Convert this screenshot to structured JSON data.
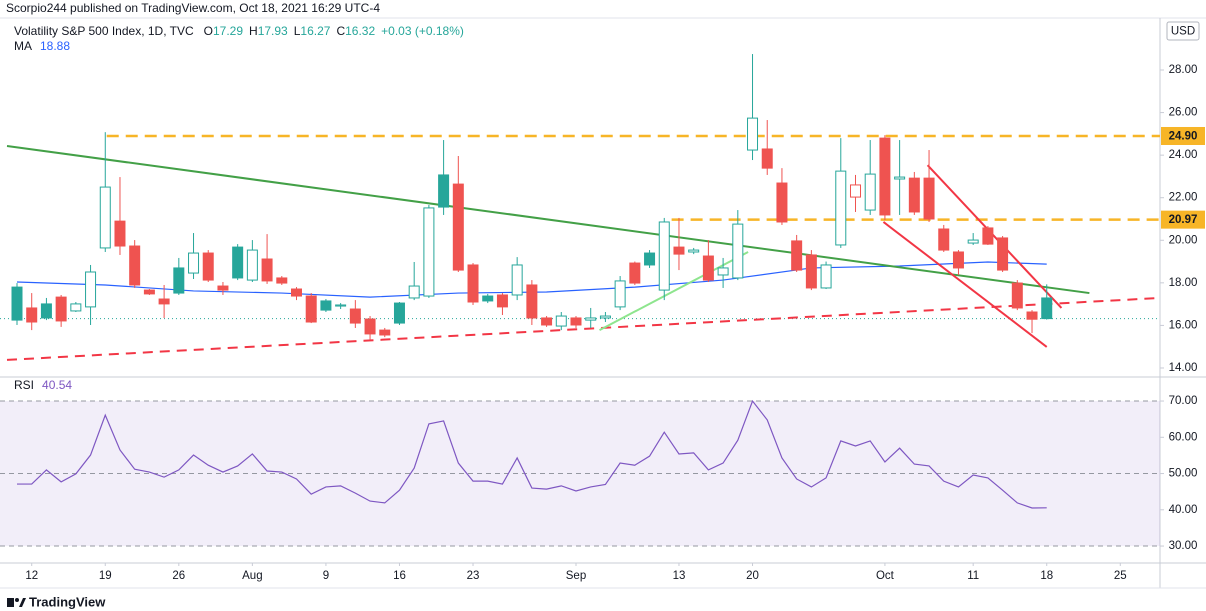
{
  "header": {
    "publisher": "Scorpio244 published on TradingView.com, Oct 18, 2021 16:29 UTC-4"
  },
  "footer": {
    "brand": "TradingView"
  },
  "chart_data": [
    {
      "type": "candlestick",
      "name": "Volatility S&P 500 Index, 1D, TVC",
      "ohlc_labels": [
        "O",
        "H",
        "L",
        "C"
      ],
      "change": "+0.03 (+0.18%)",
      "currency": "USD",
      "up_color": "#26a69a",
      "down_color": "#ef5350",
      "open": [
        17.8,
        16.82,
        17.01,
        17.33,
        16.68,
        16.87,
        19.64,
        20.9,
        19.73,
        17.66,
        17.24,
        18.7,
        18.46,
        19.4,
        17.85,
        19.68,
        18.13,
        19.12,
        18.23,
        17.71,
        17.38,
        17.15,
        16.91,
        16.77,
        16.3,
        15.78,
        17.05,
        17.29,
        17.38,
        23.07,
        22.64,
        18.84,
        17.38,
        17.43,
        17.43,
        17.9,
        16.35,
        15.97,
        16.35,
        16.25,
        16.35,
        16.87,
        18.93,
        19.4,
        17.66,
        19.68,
        19.45,
        19.26,
        18.37,
        18.23,
        24.24,
        24.29,
        22.69,
        19.97,
        19.31,
        17.76,
        19.78,
        22.03,
        21.42,
        24.8,
        22.88,
        22.92,
        22.92,
        20.53,
        19.45,
        19.87,
        20.58,
        20.11,
        17.99,
        16.63,
        17.29
      ],
      "high": [
        17.99,
        17.52,
        17.29,
        17.43,
        17.1,
        18.84,
        25.08,
        22.97,
        20.01,
        17.71,
        17.9,
        19.17,
        20.34,
        19.54,
        18.04,
        19.82,
        20.01,
        20.29,
        18.32,
        17.8,
        17.52,
        17.24,
        17.05,
        17.19,
        16.44,
        15.88,
        17.1,
        18.98,
        21.66,
        24.71,
        23.96,
        18.93,
        17.48,
        17.52,
        19.21,
        18.13,
        16.44,
        16.63,
        16.44,
        16.82,
        16.63,
        18.32,
        19.0,
        19.54,
        21.05,
        21.05,
        19.64,
        20.01,
        19.17,
        21.42,
        28.75,
        25.65,
        23.39,
        20.25,
        19.54,
        19.0,
        24.8,
        23.07,
        24.71,
        24.94,
        24.71,
        23.21,
        24.24,
        20.72,
        19.54,
        20.34,
        20.67,
        20.2,
        18.13,
        16.72,
        17.93
      ],
      "low": [
        16.02,
        15.78,
        16.25,
        15.93,
        16.63,
        16.02,
        19.45,
        19.31,
        17.76,
        17.43,
        16.35,
        17.43,
        18.18,
        18.04,
        17.43,
        18.13,
        18.04,
        17.95,
        17.9,
        17.19,
        16.11,
        16.63,
        16.77,
        15.88,
        15.32,
        15.45,
        16.02,
        17.19,
        17.29,
        21.19,
        18.51,
        16.96,
        17.05,
        16.49,
        17.19,
        16.02,
        15.93,
        15.78,
        15.88,
        15.88,
        16.16,
        16.72,
        17.9,
        18.7,
        17.19,
        18.6,
        19.35,
        18.04,
        17.76,
        18.13,
        23.77,
        23.07,
        20.72,
        18.51,
        17.66,
        17.71,
        19.64,
        21.33,
        21.19,
        20.95,
        21.19,
        21.19,
        20.86,
        19.45,
        18.37,
        19.78,
        19.78,
        18.51,
        16.72,
        15.64,
        16.27
      ],
      "close": [
        16.25,
        16.16,
        16.35,
        16.21,
        17.01,
        18.51,
        22.5,
        19.73,
        17.9,
        17.48,
        17.01,
        17.52,
        19.4,
        18.13,
        17.66,
        18.23,
        19.54,
        18.09,
        17.99,
        17.38,
        16.16,
        16.72,
        16.96,
        16.11,
        15.6,
        15.55,
        16.11,
        17.85,
        21.52,
        21.56,
        18.6,
        17.1,
        17.15,
        16.87,
        18.84,
        16.35,
        16.02,
        16.44,
        16.02,
        16.35,
        16.44,
        18.09,
        17.99,
        18.84,
        20.86,
        19.35,
        19.54,
        18.13,
        18.7,
        20.76,
        25.74,
        23.39,
        20.86,
        18.6,
        17.76,
        18.84,
        23.25,
        22.6,
        23.11,
        21.19,
        22.97,
        21.33,
        21.0,
        19.54,
        18.7,
        20.01,
        19.82,
        18.6,
        16.82,
        16.29,
        16.32
      ],
      "ma": {
        "name": "MA",
        "color": "#2962ff",
        "x": [
          0,
          6,
          12,
          18,
          24,
          30,
          36,
          42,
          48,
          54,
          60,
          66,
          70
        ],
        "values": [
          18.04,
          17.9,
          17.62,
          17.52,
          17.33,
          17.52,
          17.57,
          17.8,
          18.13,
          18.7,
          18.79,
          18.98,
          18.88
        ]
      },
      "ylim": [
        13.67,
        30.35
      ],
      "yticks": [
        {
          "value": 28,
          "label": "28.00"
        },
        {
          "value": 26,
          "label": "26.00"
        },
        {
          "value": 24,
          "label": "24.00"
        },
        {
          "value": 22,
          "label": "22.00"
        },
        {
          "value": 20,
          "label": "20.00"
        },
        {
          "value": 18,
          "label": "18.00"
        },
        {
          "value": 16,
          "label": "16.00"
        },
        {
          "value": 14,
          "label": "14.00"
        }
      ],
      "levels": [
        {
          "value": 24.9,
          "label": "24.90",
          "from": 6.1,
          "color": "#f7b527"
        },
        {
          "value": 20.97,
          "label": "20.97",
          "from": 44.5,
          "color": "#f7b527"
        }
      ],
      "trendlines": [
        {
          "color": "#43a047",
          "dashed": false,
          "x": [
            -0.68,
            72.9
          ],
          "values": [
            24.43,
            17.52
          ]
        },
        {
          "color": "#f23645",
          "dashed": true,
          "x": [
            -0.68,
            77.7
          ],
          "values": [
            14.38,
            17.29
          ]
        },
        {
          "color": "#f23645",
          "dashed": false,
          "x": [
            61.9,
            71.0
          ],
          "values": [
            23.53,
            16.82
          ]
        },
        {
          "color": "#f23645",
          "dashed": false,
          "x": [
            58.9,
            70.0
          ],
          "values": [
            20.86,
            14.99
          ]
        },
        {
          "color": "#8ee58e",
          "dashed": false,
          "x": [
            39.6,
            49.7
          ],
          "values": [
            15.78,
            19.45
          ]
        }
      ],
      "grid": false
    },
    {
      "type": "line",
      "name": "RSI",
      "color": "#7e57c2",
      "values": [
        47.1,
        47.1,
        51.0,
        47.7,
        49.9,
        55.1,
        66.1,
        56.5,
        51.2,
        50.4,
        49.0,
        51.0,
        55.1,
        52.3,
        50.4,
        52.1,
        55.4,
        50.7,
        50.4,
        48.5,
        44.3,
        46.3,
        46.6,
        44.6,
        42.4,
        41.9,
        45.4,
        51.5,
        63.7,
        64.5,
        52.9,
        47.9,
        47.9,
        47.1,
        54.3,
        46.0,
        45.7,
        46.6,
        45.2,
        46.3,
        47.0,
        52.9,
        52.3,
        54.8,
        61.4,
        55.4,
        55.7,
        51.0,
        52.9,
        59.2,
        70.0,
        64.8,
        54.3,
        48.5,
        46.3,
        48.8,
        59.0,
        57.6,
        59.0,
        53.2,
        57.0,
        52.6,
        52.1,
        47.9,
        46.3,
        49.6,
        48.8,
        45.4,
        41.9,
        40.5,
        40.54
      ],
      "ylim": [
        25.6,
        75.8
      ],
      "yticks": [
        {
          "value": 70,
          "label": "70.00"
        },
        {
          "value": 60,
          "label": "60.00"
        },
        {
          "value": 50,
          "label": "50.00"
        },
        {
          "value": 40,
          "label": "40.00"
        },
        {
          "value": 30,
          "label": "30.00"
        }
      ],
      "dashed_levels": [
        70,
        50,
        30
      ],
      "xlim": [
        -0.68,
        77.7
      ],
      "xticks": [
        {
          "value": 1,
          "label": "12"
        },
        {
          "value": 6,
          "label": "19"
        },
        {
          "value": 11,
          "label": "26"
        },
        {
          "value": 16,
          "label": "Aug"
        },
        {
          "value": 21,
          "label": "9"
        },
        {
          "value": 26,
          "label": "16"
        },
        {
          "value": 31,
          "label": "23"
        },
        {
          "value": 38,
          "label": "Sep"
        },
        {
          "value": 45,
          "label": "13"
        },
        {
          "value": 50,
          "label": "20"
        },
        {
          "value": 59,
          "label": "Oct"
        },
        {
          "value": 65,
          "label": "11"
        },
        {
          "value": 70,
          "label": "18"
        },
        {
          "value": 75,
          "label": "25"
        }
      ]
    }
  ]
}
